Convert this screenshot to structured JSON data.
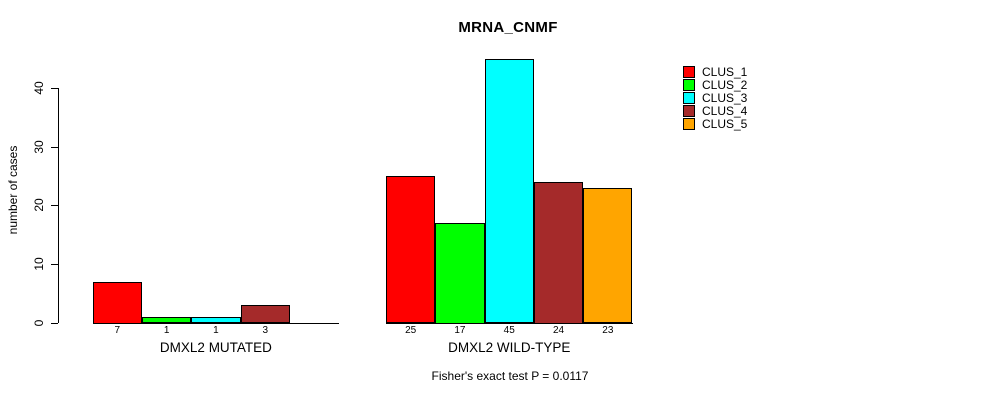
{
  "chart_data": {
    "type": "bar",
    "title": "MRNA_CNMF",
    "ylabel": "number of cases",
    "xlabel": "",
    "ylim": [
      0,
      45
    ],
    "yticks": [
      0,
      10,
      20,
      30,
      40
    ],
    "grid": false,
    "legend_position": "right",
    "series_labels": [
      "CLUS_1",
      "CLUS_2",
      "CLUS_3",
      "CLUS_4",
      "CLUS_5"
    ],
    "colors": [
      "#FF0000",
      "#00FF00",
      "#00FFFF",
      "#A52A2A",
      "#FFA500"
    ],
    "categories": [
      "DMXL2 MUTATED",
      "DMXL2 WILD-TYPE"
    ],
    "groups": [
      {
        "label": "DMXL2 MUTATED",
        "values": [
          7,
          1,
          1,
          3,
          0
        ],
        "bar_labels": [
          "7",
          "1",
          "1",
          "3",
          ""
        ]
      },
      {
        "label": "DMXL2 WILD-TYPE",
        "values": [
          25,
          17,
          45,
          24,
          23
        ],
        "bar_labels": [
          "25",
          "17",
          "45",
          "24",
          "23"
        ]
      }
    ],
    "annotation": "Fisher's exact test P = 0.0117"
  }
}
